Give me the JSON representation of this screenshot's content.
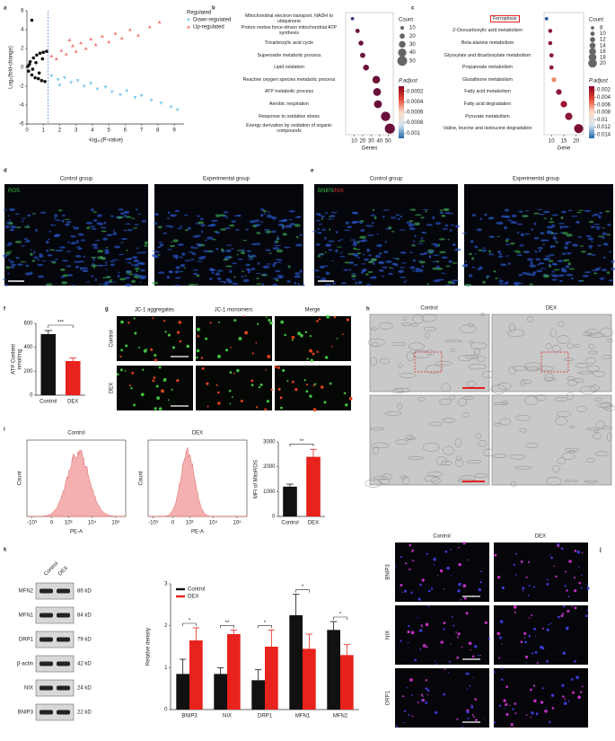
{
  "panel_labels": [
    "a",
    "b",
    "c",
    "d",
    "e",
    "f",
    "g",
    "h",
    "i",
    "j",
    "k"
  ],
  "chart_data": [
    {
      "type": "scatter",
      "xlabel": "-log₁₀(P-value)",
      "ylabel": "Log₂(fold-change)",
      "xlim": [
        0,
        9.6
      ],
      "ylim": [
        -6,
        6
      ],
      "xticks": [
        0,
        1,
        2,
        3,
        4,
        5,
        6,
        7,
        8,
        9
      ],
      "yticks": [
        -6,
        -4,
        -2,
        0,
        2,
        4,
        6
      ],
      "vline": 1.3,
      "legend_title": "Regulated",
      "series": [
        {
          "name": "Down-regulated",
          "color": "#7ec8f0",
          "marker": "triangle-down",
          "x": [
            1.5,
            1.9,
            2.3,
            2.7,
            3.1,
            3.5,
            3.9,
            4.3,
            4.8,
            5.2,
            5.7,
            6.1,
            6.6,
            7.0,
            7.6,
            8.2,
            8.8,
            9.2,
            2.0
          ],
          "y": [
            -0.9,
            -1.3,
            -1.1,
            -1.6,
            -1.4,
            -2.0,
            -1.7,
            -2.3,
            -2.1,
            -2.6,
            -2.9,
            -2.5,
            -3.2,
            -3.0,
            -3.5,
            -3.8,
            -4.2,
            -4.5,
            -1.9
          ]
        },
        {
          "name": "Up-regulated",
          "color": "#f08080",
          "marker": "triangle-up",
          "x": [
            1.5,
            1.8,
            2.1,
            2.4,
            2.8,
            3.0,
            3.3,
            3.6,
            3.9,
            4.2,
            4.6,
            5.0,
            5.4,
            5.8,
            6.3,
            6.8,
            7.5,
            8.1,
            2.6
          ],
          "y": [
            1.2,
            0.9,
            1.8,
            1.4,
            2.3,
            1.7,
            2.6,
            2.0,
            3.0,
            2.4,
            3.3,
            2.7,
            3.6,
            3.1,
            4.0,
            3.4,
            4.3,
            4.8,
            2.9
          ]
        },
        {
          "color": "#111111",
          "marker": "circle",
          "x": [
            0.05,
            0.1,
            0.2,
            0.3,
            0.4,
            0.5,
            0.6,
            0.7,
            0.8,
            0.9,
            1.0,
            1.1,
            1.2,
            0.15,
            0.35,
            0.55,
            0.75,
            0.95,
            0.3
          ],
          "y": [
            0.1,
            -0.4,
            0.6,
            -0.8,
            1.0,
            -1.1,
            1.3,
            -1.2,
            1.5,
            -1.4,
            1.6,
            -1.5,
            1.7,
            0.3,
            -0.2,
            0.5,
            -0.6,
            0.9,
            5.0
          ]
        }
      ]
    },
    {
      "type": "dot",
      "xlabel": "Genes",
      "xlim": [
        0,
        56
      ],
      "xticks": [
        10,
        20,
        30,
        40,
        50
      ],
      "categories": [
        "Mitochondrial electron transport, NADH to ubiquinone",
        "Proton motive force-driven mitochondrial ATP synthesis",
        "Tricarboxylic acid cycle",
        "Superoxide metabolic process",
        "Lipid oxidation",
        "Reactive oxygen species metabolic process",
        "ATP metabolic process",
        "Aerobic respiration",
        "Response to oxidative stress",
        "Energy derivation by oxidation of organic compounds"
      ],
      "values": [
        8,
        14,
        18,
        20,
        24,
        36,
        37,
        38,
        47,
        52
      ],
      "colors": [
        "#3a3a8c",
        "#6a0f3a",
        "#6a0f3a",
        "#6a0f3a",
        "#6a0f3a",
        "#6a0f3a",
        "#6a0f3a",
        "#6a0f3a",
        "#6a0f3a",
        "#6a0f3a"
      ],
      "size_legend": {
        "title": "Count",
        "values": [
          10,
          20,
          30,
          40,
          50
        ]
      },
      "colorbar": {
        "title": "P.adjust",
        "lim": [
          0.0001,
          0.0011
        ],
        "ticks": [
          0.0002,
          0.0004,
          0.0006,
          0.0008,
          0.001
        ],
        "colors": [
          "#8b0020",
          "#e34a33",
          "#fddbc7",
          "#d1e5f0",
          "#2166ac"
        ]
      }
    },
    {
      "type": "dot",
      "xlabel": "Gene",
      "xlim": [
        7,
        23
      ],
      "xticks": [
        10,
        15,
        20
      ],
      "highlight": 0,
      "categories": [
        "Ferroptosis",
        "2-Oxocarboxylic acid metabolism",
        "Beta-alanine metabolism",
        "Glyoxylate and dicarboxylate metabolism",
        "Propanoate metabolism",
        "Glutathione metabolism",
        "Fatty acid metabolism",
        "Fatty acid degradation",
        "Pyruvate metabolism",
        "Valine, leucine and isoleucine degradation"
      ],
      "values": [
        8,
        9.5,
        9.5,
        10,
        10,
        11,
        13,
        15,
        17,
        21
      ],
      "colors": [
        "#2c5aa0",
        "#8b1a3a",
        "#8b1a3a",
        "#8b1a3a",
        "#8b1a3a",
        "#f08a6a",
        "#8b1a3a",
        "#9b1030",
        "#8b1a3a",
        "#7a0c30"
      ],
      "size_legend": {
        "title": "Count",
        "values": [
          8,
          10,
          12,
          14,
          16,
          18,
          20
        ]
      },
      "colorbar": {
        "title": "P.adjust",
        "lim": [
          0.001,
          0.015
        ],
        "ticks": [
          0.002,
          0.004,
          0.006,
          0.008,
          0.01,
          0.012,
          0.014
        ],
        "colors": [
          "#8b0020",
          "#e34a33",
          "#fddbc7",
          "#d1e5f0",
          "#2166ac"
        ]
      }
    },
    {
      "type": "bar",
      "categories": [
        "Control",
        "DEX"
      ],
      "values": [
        510,
        285
      ],
      "errors": [
        30,
        25
      ],
      "colors": [
        "#111111",
        "#e8221c"
      ],
      "ylim": [
        0,
        600
      ],
      "yticks": [
        0,
        200,
        400,
        600
      ],
      "ylabel": [
        "ATP Content",
        "nmol/mg"
      ],
      "significance": "***"
    },
    {
      "type": "bar",
      "categories": [
        "Control",
        "DEX"
      ],
      "values": [
        1200,
        2400
      ],
      "errors": [
        100,
        300
      ],
      "colors": [
        "#111111",
        "#e8221c"
      ],
      "ylim": [
        0,
        3000
      ],
      "yticks": [
        0,
        1000,
        2000,
        3000
      ],
      "ylabel": [
        "MFI of MitoROS"
      ],
      "significance": "**"
    },
    {
      "type": "bar",
      "categories": [
        "BNIP3",
        "NIX",
        "DRP1",
        "MFN1",
        "MFN2"
      ],
      "ylim": [
        0,
        3
      ],
      "yticks": [
        0,
        1,
        2,
        3
      ],
      "ylabel": [
        "Relative density"
      ],
      "series": [
        {
          "name": "Control",
          "color": "#111111",
          "values": [
            0.85,
            0.85,
            0.7,
            2.25,
            1.9
          ],
          "errors": [
            0.35,
            0.15,
            0.25,
            0.5,
            0.2
          ]
        },
        {
          "name": "DEX",
          "color": "#e8221c",
          "values": [
            1.65,
            1.8,
            1.5,
            1.45,
            1.3
          ],
          "errors": [
            0.3,
            0.1,
            0.4,
            0.35,
            0.25
          ]
        }
      ],
      "significance": [
        "*",
        "**",
        "*",
        "*",
        "*"
      ],
      "legend": "upper left"
    }
  ],
  "images": {
    "d": {
      "columns": [
        "Control group",
        "Experimental group"
      ],
      "stain": [
        "ROS"
      ]
    },
    "e": {
      "columns": [
        "Control group",
        "Experimental group"
      ],
      "stain": [
        "BNIP3",
        "/NIX"
      ]
    },
    "g": {
      "columns": [
        "JC-1 aggregates",
        "JC-1 monomers",
        "Merge"
      ],
      "rows": [
        "Control",
        "DEX"
      ]
    },
    "h": {
      "columns": [
        "Control",
        "DEX"
      ]
    },
    "j": {
      "columns": [
        "Control",
        "DEX"
      ],
      "rows": [
        "BNIP3",
        "NIX",
        "DRP1"
      ]
    }
  },
  "histograms": {
    "titles": [
      "Control",
      "DEX"
    ],
    "ylabel": "Count",
    "xlabel": "PE-A",
    "xticks": [
      "-10³",
      "0",
      "10³",
      "10⁴",
      "10⁵"
    ]
  },
  "blot": {
    "columns": [
      "Control",
      "DEX"
    ],
    "rows": [
      "MFN2",
      "MFN1",
      "DRP1",
      "β-actin",
      "NIX",
      "BNIP3"
    ],
    "sizes": [
      "86 kD",
      "84 kD",
      "79 kD",
      "42 kD",
      "24 kD",
      "22 kD"
    ]
  }
}
